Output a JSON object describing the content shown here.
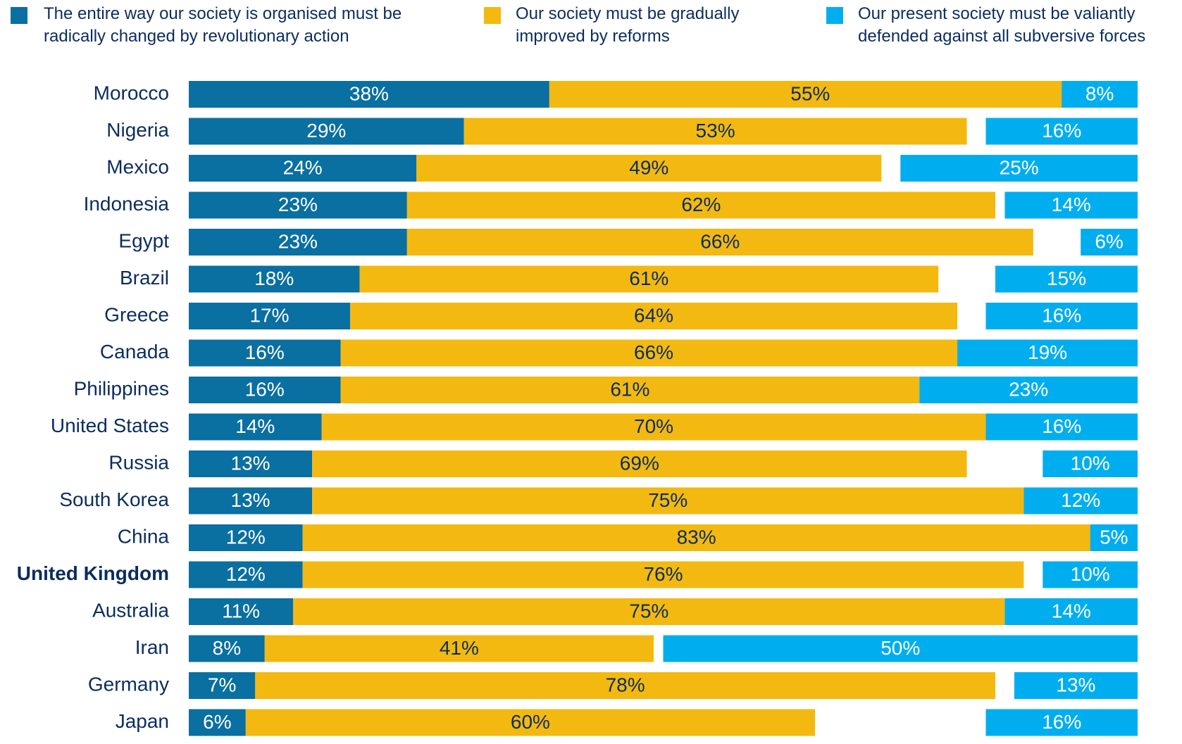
{
  "chart_data": {
    "type": "bar",
    "orientation": "horizontal",
    "stacked": true,
    "categories": [
      "Morocco",
      "Nigeria",
      "Mexico",
      "Indonesia",
      "Egypt",
      "Brazil",
      "Greece",
      "Canada",
      "Philippines",
      "United States",
      "Russia",
      "South Korea",
      "China",
      "United Kingdom",
      "Australia",
      "Iran",
      "Germany",
      "Japan"
    ],
    "xlim": [
      0,
      100
    ],
    "legend": "top",
    "series": [
      {
        "name": "The entire way our society is organised must be radically changed by revolutionary action",
        "color": "#0a6fa1",
        "values": [
          38,
          29,
          24,
          23,
          23,
          18,
          17,
          16,
          16,
          14,
          13,
          13,
          12,
          12,
          11,
          8,
          7,
          6
        ],
        "value_labels": [
          "38%",
          "29%",
          "24%",
          "23%",
          "23%",
          "18%",
          "17%",
          "16%",
          "16%",
          "14%",
          "13%",
          "13%",
          "12%",
          "12%",
          "11%",
          "8%",
          "7%",
          "6%"
        ]
      },
      {
        "name": "Our society must be gradually improved by reforms",
        "color": "#f3b910",
        "values": [
          55,
          53,
          49,
          62,
          66,
          61,
          64,
          66,
          61,
          70,
          69,
          75,
          83,
          76,
          75,
          41,
          78,
          60
        ],
        "value_labels": [
          "55%",
          "53%",
          "49%",
          "62%",
          "66%",
          "61%",
          "64%",
          "66%",
          "61%",
          "70%",
          "69%",
          "75%",
          "83%",
          "76%",
          "75%",
          "41%",
          "78%",
          "60%"
        ]
      },
      {
        "name": "Our present society must be valiantly defended against all subversive forces",
        "color": "#00aeef",
        "values": [
          8,
          16,
          25,
          14,
          6,
          15,
          16,
          19,
          23,
          16,
          10,
          12,
          5,
          10,
          14,
          50,
          13,
          16
        ],
        "value_labels": [
          "8%",
          "16%",
          "25%",
          "14%",
          "6%",
          "15%",
          "16%",
          "19%",
          "23%",
          "16%",
          "10%",
          "12%",
          "5%",
          "10%",
          "14%",
          "50%",
          "13%",
          "16%"
        ]
      }
    ]
  }
}
